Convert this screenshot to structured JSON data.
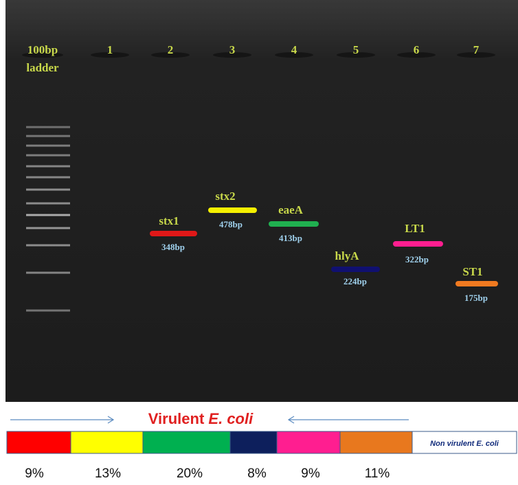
{
  "lanes": [
    {
      "label": "100bp",
      "sublabel": "ladder"
    },
    {
      "label": "1"
    },
    {
      "label": "2"
    },
    {
      "label": "3"
    },
    {
      "label": "4"
    },
    {
      "label": "5"
    },
    {
      "label": "6"
    },
    {
      "label": "7"
    }
  ],
  "bands": [
    {
      "gene": "stx1",
      "size": "348bp"
    },
    {
      "gene": "stx2",
      "size": "478bp"
    },
    {
      "gene": "eaeA",
      "size": "413bp"
    },
    {
      "gene": "hlyA",
      "size": "224bp"
    },
    {
      "gene": "LT1",
      "size": "322bp"
    },
    {
      "gene": "ST1",
      "size": "175bp"
    }
  ],
  "legend": {
    "title": "Virulent",
    "title_italic": "E. coli",
    "non_virulent": "Non virulent",
    "non_virulent_italic": "E. coli",
    "percentages": [
      "9%",
      "13%",
      "20%",
      "8%",
      "9%",
      "11%"
    ]
  }
}
